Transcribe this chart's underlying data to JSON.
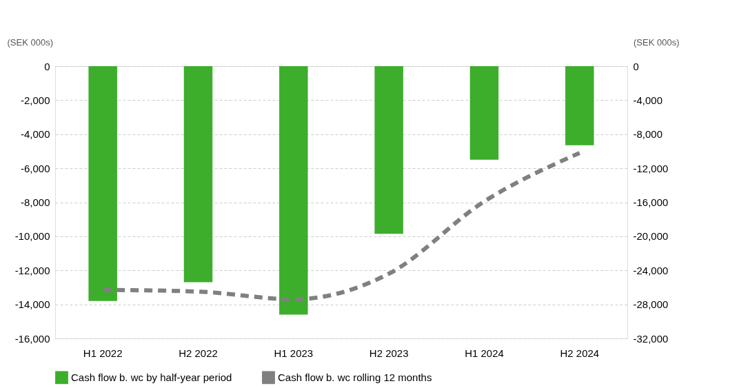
{
  "chart_data": {
    "type": "bar",
    "ylabel": "(SEK 000s)",
    "y2label": "(SEK 000s)",
    "categories": [
      "H1 2022",
      "H2 2022",
      "H1 2023",
      "H2 2023",
      "H1 2024",
      "H2 2024"
    ],
    "series": [
      {
        "name": "Cash flow b. wc by half-year period",
        "color": "#3dae2b",
        "values": [
          -13800,
          -12700,
          -14600,
          -9850,
          -5500,
          -4650
        ]
      },
      {
        "name": "Cash flow b. wc rolling 12 months",
        "type": "line",
        "axis": "y2",
        "color": "#808080",
        "line_style": "dashed",
        "values": [
          -26300,
          -26500,
          -27400,
          -24400,
          -15900,
          -10200
        ]
      }
    ],
    "ylim": [
      -16000,
      0
    ],
    "yticks": [
      {
        "value": 0,
        "label": "0"
      },
      {
        "value": -2000,
        "label": "-2,000"
      },
      {
        "value": -4000,
        "label": "-4,000"
      },
      {
        "value": -6000,
        "label": "-6,000"
      },
      {
        "value": -8000,
        "label": "-8,000"
      },
      {
        "value": -10000,
        "label": "-10,000"
      },
      {
        "value": -12000,
        "label": "-12,000"
      },
      {
        "value": -14000,
        "label": "-14,000"
      },
      {
        "value": -16000,
        "label": "-16,000"
      }
    ],
    "y2lim": [
      -32000,
      0
    ],
    "y2ticks": [
      {
        "value": 0,
        "label": "0"
      },
      {
        "value": -4000,
        "label": "-4,000"
      },
      {
        "value": -8000,
        "label": "-8,000"
      },
      {
        "value": -12000,
        "label": "-12,000"
      },
      {
        "value": -16000,
        "label": "-16,000"
      },
      {
        "value": -20000,
        "label": "-20,000"
      },
      {
        "value": -24000,
        "label": "-24,000"
      },
      {
        "value": -28000,
        "label": "-28,000"
      },
      {
        "value": -32000,
        "label": "-32,000"
      }
    ],
    "grid": "y",
    "legend": "bottom"
  }
}
